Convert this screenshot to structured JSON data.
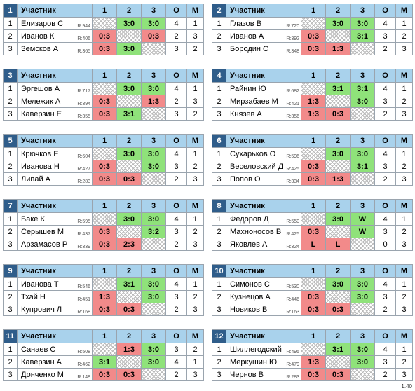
{
  "header": {
    "participant": "Участник",
    "cols": [
      "1",
      "2",
      "3",
      "О",
      "М"
    ]
  },
  "version": "1.40",
  "groups": [
    {
      "num": "1",
      "rows": [
        {
          "n": "1",
          "name": "Елизаров С",
          "rating": "R:944",
          "cells": [
            "",
            "3:0",
            "3:0"
          ],
          "pts": "4",
          "place": "1"
        },
        {
          "n": "2",
          "name": "Иванов К",
          "rating": "R:406",
          "cells": [
            "0:3",
            "",
            "0:3"
          ],
          "pts": "2",
          "place": "3"
        },
        {
          "n": "3",
          "name": "Земсков А",
          "rating": "R:365",
          "cells": [
            "0:3",
            "3:0",
            ""
          ],
          "pts": "3",
          "place": "2"
        }
      ]
    },
    {
      "num": "2",
      "rows": [
        {
          "n": "1",
          "name": "Глазов В",
          "rating": "R:720",
          "cells": [
            "",
            "3:0",
            "3:0"
          ],
          "pts": "4",
          "place": "1"
        },
        {
          "n": "2",
          "name": "Иванов А",
          "rating": "R:392",
          "cells": [
            "0:3",
            "",
            "3:1"
          ],
          "pts": "3",
          "place": "2"
        },
        {
          "n": "3",
          "name": "Бородин С",
          "rating": "R:348",
          "cells": [
            "0:3",
            "1:3",
            ""
          ],
          "pts": "2",
          "place": "3"
        }
      ]
    },
    {
      "num": "3",
      "rows": [
        {
          "n": "1",
          "name": "Эргешов А",
          "rating": "R:717",
          "cells": [
            "",
            "3:0",
            "3:0"
          ],
          "pts": "4",
          "place": "1"
        },
        {
          "n": "2",
          "name": "Мележик А",
          "rating": "R:394",
          "cells": [
            "0:3",
            "",
            "1:3"
          ],
          "pts": "2",
          "place": "3"
        },
        {
          "n": "3",
          "name": "Каверзин Е",
          "rating": "R:355",
          "cells": [
            "0:3",
            "3:1",
            ""
          ],
          "pts": "3",
          "place": "2"
        }
      ]
    },
    {
      "num": "4",
      "rows": [
        {
          "n": "1",
          "name": "Райнин Ю",
          "rating": "R:682",
          "cells": [
            "",
            "3:1",
            "3:1"
          ],
          "pts": "4",
          "place": "1"
        },
        {
          "n": "2",
          "name": "Мирзабаев М",
          "rating": "R:421",
          "cells": [
            "1:3",
            "",
            "3:0"
          ],
          "pts": "3",
          "place": "2"
        },
        {
          "n": "3",
          "name": "Князев А",
          "rating": "R:356",
          "cells": [
            "1:3",
            "0:3",
            ""
          ],
          "pts": "2",
          "place": "3"
        }
      ]
    },
    {
      "num": "5",
      "rows": [
        {
          "n": "1",
          "name": "Крючков Е",
          "rating": "R:604",
          "cells": [
            "",
            "3:0",
            "3:0"
          ],
          "pts": "4",
          "place": "1"
        },
        {
          "n": "2",
          "name": "Иванова Н",
          "rating": "R:427",
          "cells": [
            "0:3",
            "",
            "3:0"
          ],
          "pts": "3",
          "place": "2"
        },
        {
          "n": "3",
          "name": "Липай А",
          "rating": "R:283",
          "cells": [
            "0:3",
            "0:3",
            ""
          ],
          "pts": "2",
          "place": "3"
        }
      ]
    },
    {
      "num": "6",
      "rows": [
        {
          "n": "1",
          "name": "Сухарьков О",
          "rating": "R:596",
          "cells": [
            "",
            "3:0",
            "3:0"
          ],
          "pts": "4",
          "place": "1"
        },
        {
          "n": "2",
          "name": "Веселовский Д",
          "rating": "R:425",
          "cells": [
            "0:3",
            "",
            "3:1"
          ],
          "pts": "3",
          "place": "2"
        },
        {
          "n": "3",
          "name": "Попов О",
          "rating": "R:334",
          "cells": [
            "0:3",
            "1:3",
            ""
          ],
          "pts": "2",
          "place": "3"
        }
      ]
    },
    {
      "num": "7",
      "rows": [
        {
          "n": "1",
          "name": "Баке К",
          "rating": "R:595",
          "cells": [
            "",
            "3:0",
            "3:0"
          ],
          "pts": "4",
          "place": "1"
        },
        {
          "n": "2",
          "name": "Серышев М",
          "rating": "R:437",
          "cells": [
            "0:3",
            "",
            "3:2"
          ],
          "pts": "3",
          "place": "2"
        },
        {
          "n": "3",
          "name": "Арзамасов Р",
          "rating": "R:339",
          "cells": [
            "0:3",
            "2:3",
            ""
          ],
          "pts": "2",
          "place": "3"
        }
      ]
    },
    {
      "num": "8",
      "rows": [
        {
          "n": "1",
          "name": "Федоров Д",
          "rating": "R:550",
          "cells": [
            "",
            "3:0",
            "W"
          ],
          "pts": "4",
          "place": "1"
        },
        {
          "n": "2",
          "name": "Махноносов В",
          "rating": "R:425",
          "cells": [
            "0:3",
            "",
            "W"
          ],
          "pts": "3",
          "place": "2"
        },
        {
          "n": "3",
          "name": "Яковлев А",
          "rating": "R:324",
          "cells": [
            "L",
            "L",
            ""
          ],
          "pts": "0",
          "place": "3"
        }
      ]
    },
    {
      "num": "9",
      "rows": [
        {
          "n": "1",
          "name": "Иванова Т",
          "rating": "R:546",
          "cells": [
            "",
            "3:1",
            "3:0"
          ],
          "pts": "4",
          "place": "1"
        },
        {
          "n": "2",
          "name": "Тхай Н",
          "rating": "R:451",
          "cells": [
            "1:3",
            "",
            "3:0"
          ],
          "pts": "3",
          "place": "2"
        },
        {
          "n": "3",
          "name": "Купрович Л",
          "rating": "R:168",
          "cells": [
            "0:3",
            "0:3",
            ""
          ],
          "pts": "2",
          "place": "3"
        }
      ]
    },
    {
      "num": "10",
      "rows": [
        {
          "n": "1",
          "name": "Симонов С",
          "rating": "R:530",
          "cells": [
            "",
            "3:0",
            "3:0"
          ],
          "pts": "4",
          "place": "1"
        },
        {
          "n": "2",
          "name": "Кузнецов А",
          "rating": "R:446",
          "cells": [
            "0:3",
            "",
            "3:0"
          ],
          "pts": "3",
          "place": "2"
        },
        {
          "n": "3",
          "name": "Новиков В",
          "rating": "R:163",
          "cells": [
            "0:3",
            "0:3",
            ""
          ],
          "pts": "2",
          "place": "3"
        }
      ]
    },
    {
      "num": "11",
      "rows": [
        {
          "n": "1",
          "name": "Санаев С",
          "rating": "R:508",
          "cells": [
            "",
            "1:3",
            "3:0"
          ],
          "pts": "3",
          "place": "2"
        },
        {
          "n": "2",
          "name": "Каверзин А",
          "rating": "R:462",
          "cells": [
            "3:1",
            "",
            "3:0"
          ],
          "pts": "4",
          "place": "1"
        },
        {
          "n": "3",
          "name": "Донченко М",
          "rating": "R:148",
          "cells": [
            "0:3",
            "0:3",
            ""
          ],
          "pts": "2",
          "place": "3"
        }
      ]
    },
    {
      "num": "12",
      "rows": [
        {
          "n": "1",
          "name": "Шиллегодский",
          "rating": "R:495",
          "cells": [
            "",
            "3:1",
            "3:0"
          ],
          "pts": "4",
          "place": "1"
        },
        {
          "n": "2",
          "name": "Меркушин Ю",
          "rating": "R:479",
          "cells": [
            "1:3",
            "",
            "3:0"
          ],
          "pts": "3",
          "place": "2"
        },
        {
          "n": "3",
          "name": "Чернов В",
          "rating": "R:283",
          "cells": [
            "0:3",
            "0:3",
            ""
          ],
          "pts": "2",
          "place": "3"
        }
      ]
    }
  ]
}
